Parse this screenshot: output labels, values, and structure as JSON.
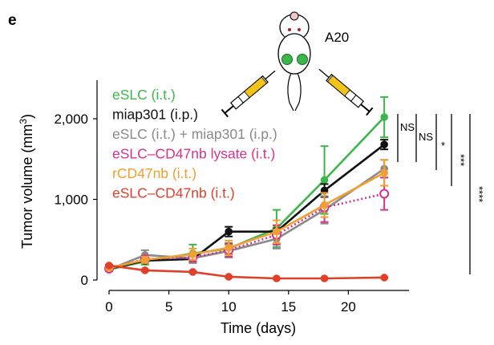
{
  "panel_label": "e",
  "model_label": "A20",
  "colors": {
    "eSLC_it": "#3cb54a",
    "miap301_ip": "#111111",
    "combo": "#8a8a8a",
    "lysate": "#d6338c",
    "rCD47nb": "#f0a030",
    "eSLC_CD47nb": "#e0402a"
  },
  "chart_data": {
    "type": "line",
    "xlabel": "Time (days)",
    "ylabel": "Tumor volume (mm",
    "ylabel_sup": "3",
    "ylabel_close": ")",
    "xlim": [
      0,
      25
    ],
    "ylim": [
      0,
      2400
    ],
    "xticks": [
      0,
      5,
      10,
      15,
      20
    ],
    "xtick_labels": [
      "0",
      "5",
      "10",
      "15",
      "20"
    ],
    "yticks": [
      0,
      1000,
      2000
    ],
    "ytick_labels": [
      "0",
      "1,000",
      "2,000"
    ],
    "grid": false,
    "legend_position": "top-left",
    "series": [
      {
        "name": "eSLC (i.t.)",
        "color_key": "eSLC_it",
        "style": "solid",
        "marker": "filled",
        "x": [
          0,
          3,
          7,
          10,
          14,
          18,
          23
        ],
        "y": [
          130,
          230,
          330,
          390,
          640,
          1240,
          2020
        ],
        "err": [
          15,
          40,
          110,
          70,
          230,
          420,
          250
        ]
      },
      {
        "name": "miap301 (i.p.)",
        "color_key": "miap301_ip",
        "style": "solid",
        "marker": "filled",
        "x": [
          0,
          3,
          7,
          10,
          14,
          18,
          23
        ],
        "y": [
          140,
          240,
          260,
          600,
          600,
          1110,
          1680
        ],
        "err": [
          20,
          30,
          40,
          60,
          40,
          80,
          60
        ]
      },
      {
        "name": "eSLC (i.t.) + miap301 (i.p.)",
        "color_key": "combo",
        "style": "solid",
        "marker": "filled",
        "x": [
          0,
          3,
          7,
          10,
          14,
          18,
          23
        ],
        "y": [
          130,
          310,
          270,
          360,
          510,
          870,
          1380
        ],
        "err": [
          20,
          60,
          60,
          80,
          120,
          170,
          110
        ]
      },
      {
        "name": "eSLC–CD47nb lysate (i.t.)",
        "color_key": "lysate",
        "style": "dotted",
        "marker": "open",
        "x": [
          0,
          3,
          7,
          10,
          14,
          18,
          23
        ],
        "y": [
          140,
          260,
          280,
          370,
          560,
          900,
          1070
        ],
        "err": [
          20,
          40,
          50,
          80,
          120,
          180,
          200
        ]
      },
      {
        "name": "rCD47nb (i.t.)",
        "color_key": "rCD47nb",
        "style": "solid",
        "marker": "filled",
        "x": [
          0,
          3,
          7,
          10,
          14,
          18,
          23
        ],
        "y": [
          150,
          250,
          320,
          400,
          600,
          930,
          1330
        ],
        "err": [
          20,
          40,
          70,
          90,
          140,
          150,
          160
        ]
      },
      {
        "name": "eSLC–CD47nb (i.t.)",
        "color_key": "eSLC_CD47nb",
        "style": "solid",
        "marker": "filled",
        "x": [
          0,
          3,
          7,
          10,
          14,
          18,
          23
        ],
        "y": [
          180,
          120,
          100,
          40,
          20,
          20,
          30
        ],
        "err": [
          10,
          10,
          10,
          8,
          5,
          5,
          5
        ]
      }
    ],
    "significance": [
      "NS",
      "NS",
      "*",
      "***",
      "****"
    ]
  }
}
